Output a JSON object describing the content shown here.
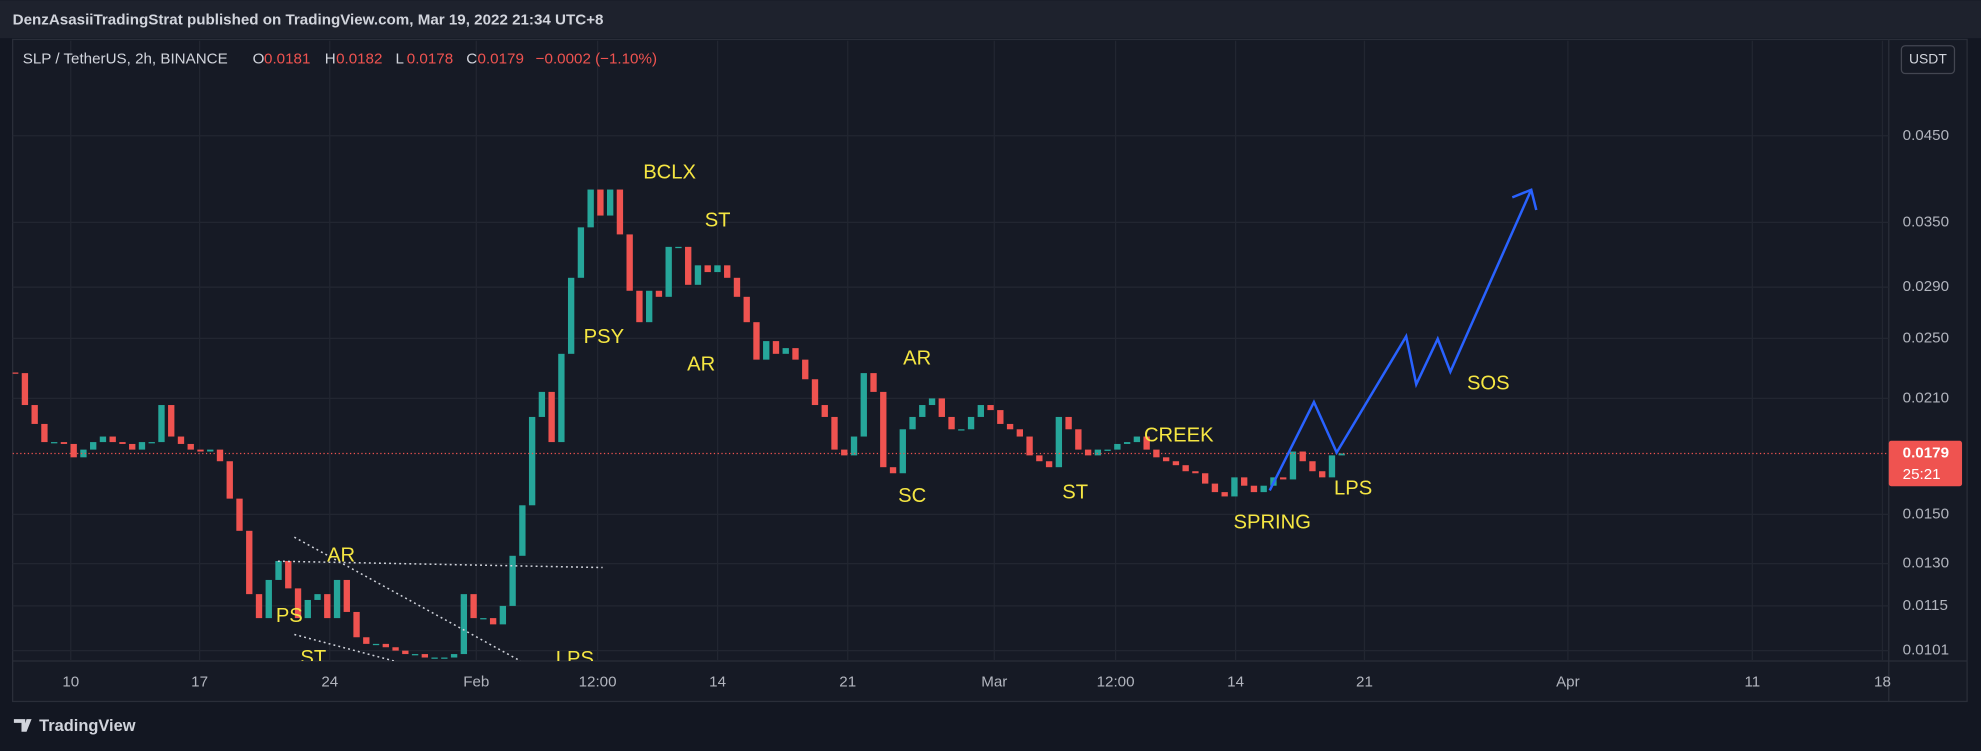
{
  "header": {
    "publisher": "DenzAsasiiTradingStrat published on TradingView.com, Mar 19, 2022 21:34 UTC+8"
  },
  "chart_data": {
    "type": "candlestick",
    "title": "SLP / TetherUS, 2h, BINANCE",
    "ohlc": [
      {
        "label": "O",
        "value": 0.0181
      },
      {
        "label": "H",
        "value": 0.0182
      },
      {
        "label": "L",
        "value": 0.0178
      },
      {
        "label": "C",
        "value": 0.0179
      }
    ],
    "change": "−0.0002 (−1.10%)",
    "currency": "USDT",
    "x_labels": [
      "10",
      "17",
      "24",
      "Feb",
      "12:00",
      "14",
      "21",
      "Mar",
      "12:00",
      "14",
      "21",
      "Apr",
      "11",
      "18"
    ],
    "values": [
      0.0226,
      0.0206,
      0.0195,
      0.0185,
      0.0185,
      0.0184,
      0.0177,
      0.0181,
      0.0185,
      0.0188,
      0.0185,
      0.0184,
      0.0181,
      0.0185,
      0.0185,
      0.0206,
      0.0188,
      0.0184,
      0.0181,
      0.018,
      0.0181,
      0.0175,
      0.0157,
      0.0143,
      0.0119,
      0.0111,
      0.0124,
      0.0131,
      0.0121,
      0.0111,
      0.0117,
      0.0119,
      0.0111,
      0.0124,
      0.0113,
      0.0105,
      0.0103,
      0.0103,
      0.0102,
      0.0101,
      0.01,
      0.01,
      0.0099,
      0.0099,
      0.0099,
      0.01,
      0.0119,
      0.0111,
      0.0111,
      0.0109,
      0.0115,
      0.0133,
      0.0154,
      0.0199,
      0.0214,
      0.0185,
      0.0239,
      0.0298,
      0.0345,
      0.0385,
      0.0357,
      0.0385,
      0.0338,
      0.0287,
      0.0262,
      0.0287,
      0.0282,
      0.0326,
      0.0326,
      0.0292,
      0.0309,
      0.0303,
      0.0309,
      0.0298,
      0.0282,
      0.0262,
      0.0235,
      0.0248,
      0.0239,
      0.0243,
      0.0235,
      0.0222,
      0.0206,
      0.0199,
      0.0181,
      0.0178,
      0.0188,
      0.0226,
      0.0214,
      0.0172,
      0.0169,
      0.0192,
      0.0199,
      0.0206,
      0.021,
      0.0199,
      0.0192,
      0.0192,
      0.0199,
      0.0206,
      0.0203,
      0.0195,
      0.0192,
      0.0188,
      0.0178,
      0.0175,
      0.0172,
      0.0199,
      0.0192,
      0.0181,
      0.0178,
      0.0181,
      0.0181,
      0.0184,
      0.0185,
      0.0188,
      0.0181,
      0.0177,
      0.0175,
      0.0173,
      0.017,
      0.0169,
      0.0164,
      0.016,
      0.0158,
      0.0167,
      0.0163,
      0.016,
      0.0163,
      0.0167,
      0.0166,
      0.018,
      0.0175,
      0.017,
      0.0167,
      0.0178,
      0.0179
    ],
    "colors": {
      "up": "#26a69a",
      "down": "#ef5350"
    },
    "log": true,
    "grid": true,
    "ylim": [
      0.0098,
      0.0593
    ],
    "yticks": [
      {
        "value": 0.045,
        "label": "0.0450"
      },
      {
        "value": 0.035,
        "label": "0.0350"
      },
      {
        "value": 0.029,
        "label": "0.0290"
      },
      {
        "value": 0.025,
        "label": "0.0250"
      },
      {
        "value": 0.021,
        "label": "0.0210"
      },
      {
        "value": 0.015,
        "label": "0.0150"
      },
      {
        "value": 0.013,
        "label": "0.0130"
      },
      0.0115,
      0.0101
    ],
    "last_price": 0.0179,
    "countdown": "25:21",
    "annotations": [
      "BCLX",
      "ST",
      "PSY",
      "AR",
      "AR",
      "SC",
      "ST",
      "CREEK",
      "SPRING",
      "LPS",
      "SOS",
      "AR",
      "PS",
      "ST",
      "LPS"
    ]
  },
  "footer": {
    "logo": "TradingView"
  }
}
